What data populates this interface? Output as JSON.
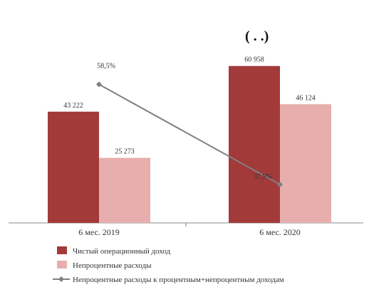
{
  "chart_data": {
    "type": "bar",
    "title": "(        .    .)",
    "categories": [
      "6 мес. 2019",
      "6 мес. 2020"
    ],
    "series": [
      {
        "name": "Чистый операционный доход",
        "values": [
          43222,
          60958
        ],
        "labels": [
          "43 222",
          "60 958"
        ],
        "color": "#a33a3a"
      },
      {
        "name": "Непроцентные расходы",
        "values": [
          25273,
          46124
        ],
        "labels": [
          "25 273",
          "46 124"
        ],
        "color": "#e8aeae"
      }
    ],
    "line_series": {
      "name": "Непроцентные расходы к процентным+непроцентным доходам",
      "values": [
        58.5,
        37.9
      ],
      "labels": [
        "58,5%",
        "37,9%"
      ],
      "color": "#808080",
      "ylim": [
        30,
        70
      ]
    },
    "ylim": [
      0,
      70000
    ],
    "grid": false,
    "legend": "bottom"
  }
}
